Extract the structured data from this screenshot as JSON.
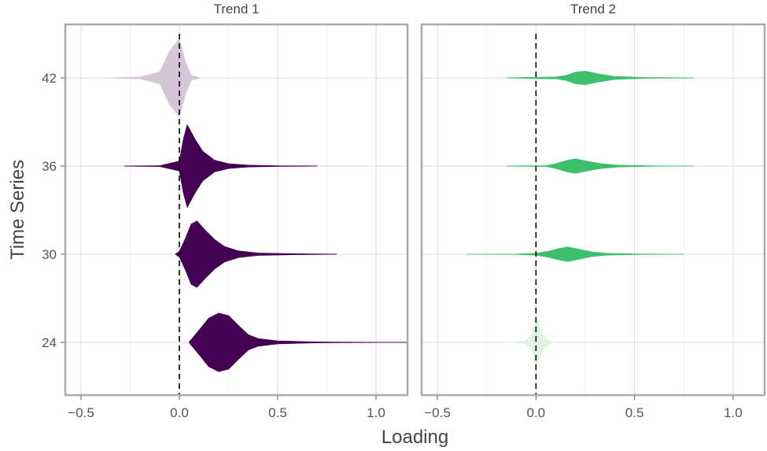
{
  "chart_data": {
    "type": "violin",
    "xlabel": "Loading",
    "ylabel": "Time Series",
    "xlim": [
      -0.58,
      1.16
    ],
    "x_ticks": [
      -0.5,
      0.0,
      0.5,
      1.0
    ],
    "x_tick_labels": [
      "−0.5",
      "0.0",
      "0.5",
      "1.0"
    ],
    "y_categories": [
      "24",
      "30",
      "36",
      "42"
    ],
    "reference_line": {
      "x": 0.0,
      "style": "dashed"
    },
    "grid": true,
    "panels": [
      {
        "title": "Trend 1",
        "violins": [
          {
            "category": "42",
            "color": "#d6c4d9",
            "shape": [
              [
                -0.35,
                0.003
              ],
              [
                -0.2,
                0.02
              ],
              [
                -0.1,
                0.12
              ],
              [
                -0.05,
                0.55
              ],
              [
                0.0,
                0.8
              ],
              [
                0.03,
                0.35
              ],
              [
                0.06,
                0.05
              ],
              [
                0.1,
                0.01
              ]
            ]
          },
          {
            "category": "36",
            "color": "#440154",
            "shape": [
              [
                -0.28,
                0.003
              ],
              [
                -0.1,
                0.01
              ],
              [
                0.0,
                0.1
              ],
              [
                0.02,
                0.55
              ],
              [
                0.04,
                0.85
              ],
              [
                0.08,
                0.55
              ],
              [
                0.12,
                0.3
              ],
              [
                0.18,
                0.12
              ],
              [
                0.25,
                0.05
              ],
              [
                0.35,
                0.02
              ],
              [
                0.5,
                0.008
              ],
              [
                0.7,
                0.003
              ]
            ]
          },
          {
            "category": "30",
            "color": "#440154",
            "shape": [
              [
                -0.02,
                0.003
              ],
              [
                0.0,
                0.06
              ],
              [
                0.03,
                0.32
              ],
              [
                0.06,
                0.62
              ],
              [
                0.09,
                0.68
              ],
              [
                0.13,
                0.5
              ],
              [
                0.18,
                0.3
              ],
              [
                0.23,
                0.16
              ],
              [
                0.3,
                0.07
              ],
              [
                0.4,
                0.025
              ],
              [
                0.6,
                0.01
              ],
              [
                0.8,
                0.003
              ]
            ]
          },
          {
            "category": "24",
            "color": "#440154",
            "shape": [
              [
                0.05,
                0.01
              ],
              [
                0.1,
                0.25
              ],
              [
                0.15,
                0.5
              ],
              [
                0.2,
                0.6
              ],
              [
                0.25,
                0.55
              ],
              [
                0.3,
                0.35
              ],
              [
                0.35,
                0.16
              ],
              [
                0.4,
                0.08
              ],
              [
                0.5,
                0.03
              ],
              [
                0.7,
                0.01
              ],
              [
                1.0,
                0.004
              ],
              [
                1.16,
                0.003
              ]
            ]
          }
        ]
      },
      {
        "title": "Trend 2",
        "violins": [
          {
            "category": "42",
            "color": "#3dbf6b",
            "shape": [
              [
                -0.15,
                0.003
              ],
              [
                0.1,
                0.02
              ],
              [
                0.15,
                0.05
              ],
              [
                0.2,
                0.12
              ],
              [
                0.25,
                0.14
              ],
              [
                0.32,
                0.08
              ],
              [
                0.4,
                0.03
              ],
              [
                0.55,
                0.01
              ],
              [
                0.8,
                0.003
              ]
            ]
          },
          {
            "category": "36",
            "color": "#3dbf6b",
            "shape": [
              [
                -0.15,
                0.003
              ],
              [
                0.05,
                0.01
              ],
              [
                0.1,
                0.05
              ],
              [
                0.16,
                0.12
              ],
              [
                0.2,
                0.15
              ],
              [
                0.26,
                0.1
              ],
              [
                0.33,
                0.05
              ],
              [
                0.42,
                0.02
              ],
              [
                0.6,
                0.005
              ],
              [
                0.8,
                0.002
              ]
            ]
          },
          {
            "category": "30",
            "color": "#3dbf6b",
            "shape": [
              [
                -0.35,
                0.002
              ],
              [
                -0.1,
                0.005
              ],
              [
                0.0,
                0.02
              ],
              [
                0.06,
                0.06
              ],
              [
                0.12,
                0.12
              ],
              [
                0.16,
                0.15
              ],
              [
                0.21,
                0.11
              ],
              [
                0.28,
                0.05
              ],
              [
                0.36,
                0.02
              ],
              [
                0.5,
                0.008
              ],
              [
                0.75,
                0.002
              ]
            ]
          },
          {
            "category": "24",
            "color": "#dff2e4",
            "shape": [
              [
                -0.15,
                0.002
              ],
              [
                -0.06,
                0.02
              ],
              [
                -0.02,
                0.15
              ],
              [
                0.0,
                0.5
              ],
              [
                0.02,
                0.3
              ],
              [
                0.05,
                0.08
              ],
              [
                0.08,
                0.01
              ],
              [
                0.1,
                0.002
              ]
            ]
          }
        ]
      }
    ]
  }
}
